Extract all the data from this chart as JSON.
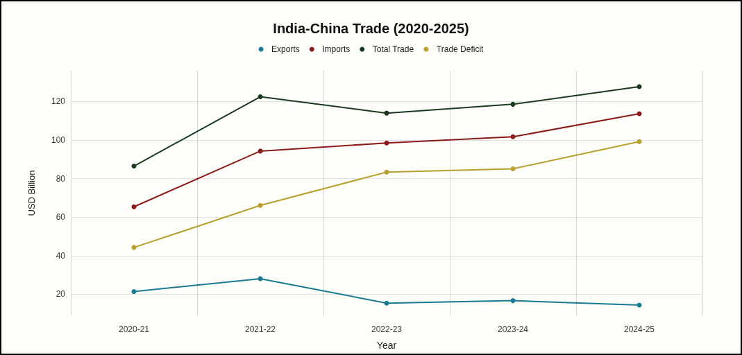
{
  "chart_data": {
    "type": "line",
    "title": "India-China Trade (2020-2025)",
    "xlabel": "Year",
    "ylabel": "USD Billion",
    "categories": [
      "2020-21",
      "2021-22",
      "2022-23",
      "2023-24",
      "2024-25"
    ],
    "series": [
      {
        "name": "Exports",
        "color": "#1a7a94",
        "values": [
          21.4,
          28.1,
          15.4,
          16.7,
          14.4
        ]
      },
      {
        "name": "Imports",
        "color": "#8b1a1a",
        "values": [
          65.4,
          94.3,
          98.5,
          101.7,
          113.7
        ]
      },
      {
        "name": "Total Trade",
        "color": "#1a3a1f",
        "values": [
          86.5,
          122.5,
          114,
          118.6,
          127.7
        ]
      },
      {
        "name": "Trade Deficit",
        "color": "#b8a02e",
        "values": [
          44.3,
          66.1,
          83.4,
          85.1,
          99.2
        ]
      }
    ],
    "ylim": [
      9,
      136
    ],
    "yticks": [
      20,
      40,
      60,
      80,
      100,
      120
    ],
    "grid": true,
    "legend": "top",
    "marker": "circle",
    "line_style": "solid"
  }
}
